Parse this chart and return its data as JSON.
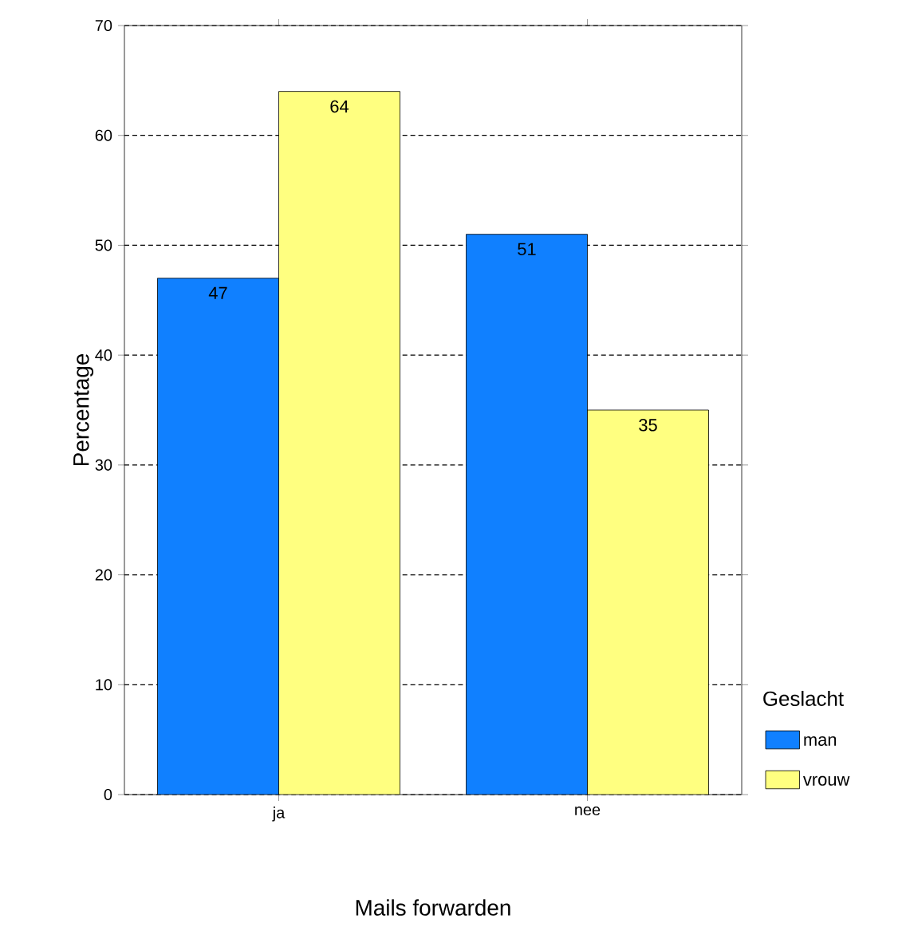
{
  "chart_data": {
    "type": "bar",
    "xlabel": "Mails forwarden",
    "ylabel": "Percentage",
    "legend_title": "Geslacht",
    "categories": [
      "ja",
      "nee"
    ],
    "series": [
      {
        "name": "man",
        "color": "#1080ff",
        "values": [
          47,
          51
        ]
      },
      {
        "name": "vrouw",
        "color": "#ffff80",
        "values": [
          64,
          35
        ]
      }
    ],
    "ylim": [
      0,
      70
    ],
    "yticks": [
      0,
      10,
      20,
      30,
      40,
      50,
      60,
      70
    ],
    "grid": "y",
    "legend": "right",
    "data_labels": true
  }
}
